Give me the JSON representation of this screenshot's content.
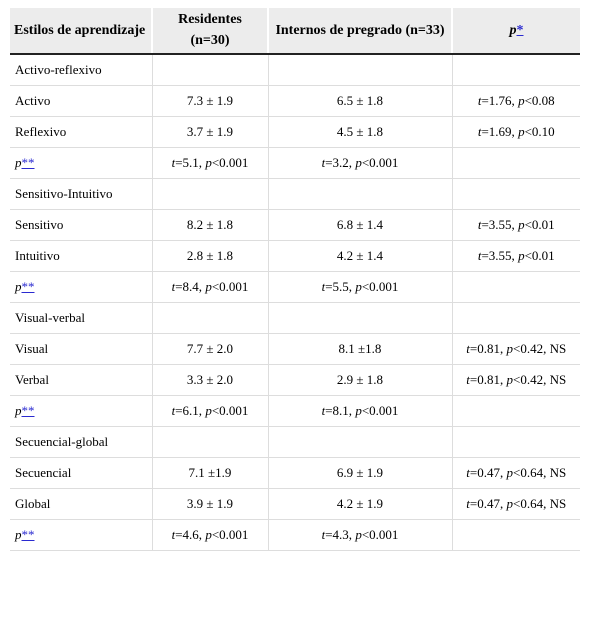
{
  "table": {
    "header": [
      "Estilos de aprendizaje",
      "Residentes (n=30)",
      "Internos de pregrado (n=33)",
      "p*"
    ],
    "rows": [
      {
        "section": "Activo-reflexivo"
      },
      {
        "cells": [
          "Activo",
          "7.3 ± 1.9",
          "6.5 ± 1.8",
          "t=1.76, p<0.08"
        ]
      },
      {
        "cells": [
          "Reflexivo",
          "3.7 ± 1.9",
          "4.5 ± 1.8",
          "t=1.69, p<0.10"
        ]
      },
      {
        "cells": [
          "p**",
          "t=5.1, p<0.001",
          "t=3.2, p<0.001"
        ]
      },
      {
        "section": "Sensitivo-Intuitivo"
      },
      {
        "cells": [
          "Sensitivo",
          "8.2 ± 1.8",
          "6.8 ± 1.4",
          "t=3.55, p<0.01"
        ]
      },
      {
        "cells": [
          "Intuitivo",
          "2.8 ± 1.8",
          "4.2 ± 1.4",
          "t=3.55, p<0.01"
        ]
      },
      {
        "cells": [
          "p**",
          "t=8.4, p<0.001",
          "t=5.5, p<0.001"
        ]
      },
      {
        "section": "Visual-verbal"
      },
      {
        "cells": [
          "Visual",
          "7.7 ± 2.0",
          "8.1 ±1.8",
          "t=0.81, p<0.42, NS"
        ]
      },
      {
        "cells": [
          "Verbal",
          "3.3 ± 2.0",
          "2.9 ± 1.8",
          "t=0.81, p<0.42, NS"
        ]
      },
      {
        "cells": [
          "p**",
          "t=6.1, p<0.001",
          "t=8.1, p<0.001"
        ]
      },
      {
        "section": "Secuencial-global"
      },
      {
        "cells": [
          "Secuencial",
          "7.1 ±1.9",
          "6.9 ± 1.9",
          "t=0.47, p<0.64, NS"
        ]
      },
      {
        "cells": [
          "Global",
          "3.9 ± 1.9",
          "4.2 ± 1.9",
          "t=0.47, p<0.64, NS"
        ]
      },
      {
        "cells": [
          "p**",
          "t=4.6, p<0.001",
          "t=4.3, p<0.001"
        ]
      }
    ]
  }
}
